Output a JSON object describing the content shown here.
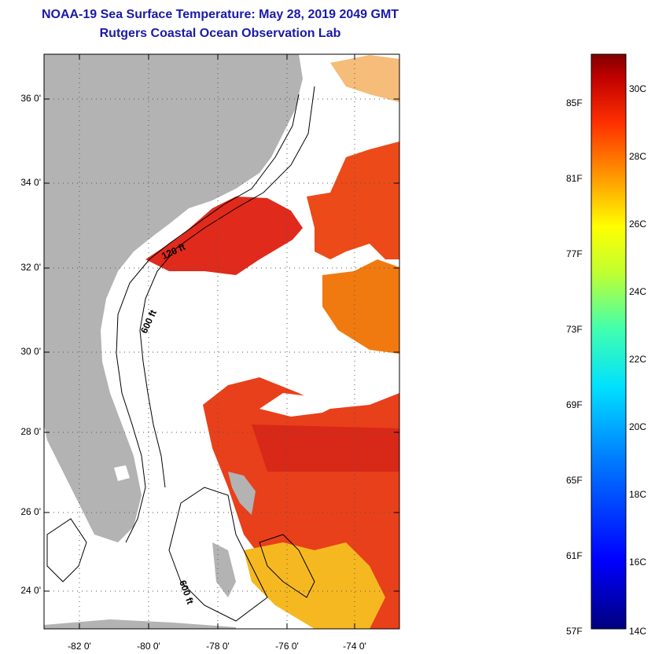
{
  "title_line1": "NOAA-19 Sea Surface Temperature:  May 28, 2019 2049 GMT",
  "title_line2": "Rutgers Coastal Ocean Observation Lab",
  "lat_ticks": [
    "36 0'",
    "34 0'",
    "32 0'",
    "30 0'",
    "28 0'",
    "26 0'",
    "24 0'"
  ],
  "lon_ticks": [
    "-82 0'",
    "-80 0'",
    "-78 0'",
    "-76 0'",
    "-74 0'"
  ],
  "contour_labels": {
    "c120": "120 ft",
    "c600a": "600 ft",
    "c600b": "600 ft"
  },
  "colorbar_f_labels": [
    "85F",
    "81F",
    "77F",
    "73F",
    "69F",
    "65F",
    "61F",
    "57F"
  ],
  "colorbar_c_labels": [
    "30C",
    "28C",
    "26C",
    "24C",
    "22C",
    "20C",
    "18C",
    "16C",
    "14C"
  ],
  "colors": {
    "title": "#1a1aa6",
    "land": "#b3b3b3",
    "sst_warm": "#e0301a",
    "sst_orange": "#f06a10",
    "sst_yellow": "#f8c020"
  }
}
